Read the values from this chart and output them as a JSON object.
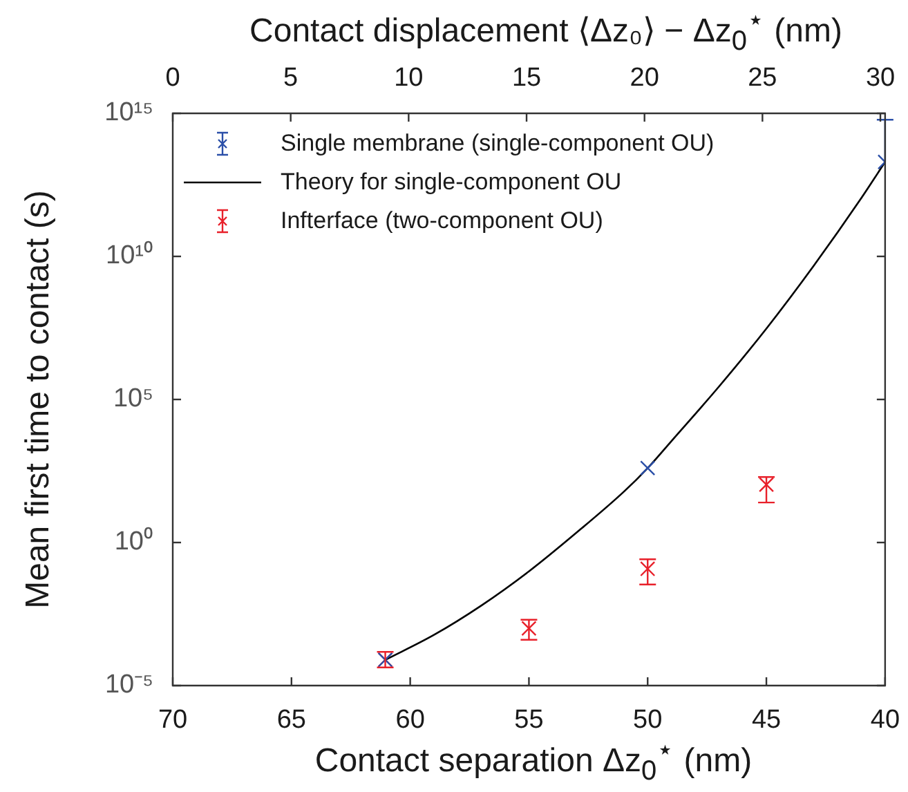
{
  "chart_data": {
    "type": "scatter",
    "xlabel": "Contact separation  Δz$_{0}$$^{⋆}$ (nm)",
    "x2label": "Contact displacement ⟨Δz₀⟩ − Δz$_{0}$$^{⋆}$ (nm)",
    "ylabel": "Mean first time to contact (s)",
    "xlim": [
      70,
      40
    ],
    "xticks": [
      70,
      65,
      60,
      55,
      50,
      45,
      40
    ],
    "x2lim": [
      0,
      30.2
    ],
    "x2ticks": [
      0,
      5,
      10,
      15,
      20,
      25,
      30
    ],
    "ylim": [
      1e-05,
      1000000000000000.0
    ],
    "yticks": [
      {
        "value": 1e-05,
        "label": "10⁻⁵"
      },
      {
        "value": 1,
        "label": "10⁰"
      },
      {
        "value": 100000.0,
        "label": "10⁵"
      },
      {
        "value": 10000000000.0,
        "label": "10¹⁰"
      },
      {
        "value": 1000000000000000.0,
        "label": "10¹⁵"
      }
    ],
    "log": "y",
    "legend": "top left",
    "series": [
      {
        "name": "Single membrane (single-component OU)",
        "marker": "cross",
        "color": "#2b4fa8",
        "x": [
          61.05,
          50,
          40
        ],
        "values": [
          7.9e-05,
          400,
          20000000000000.0
        ],
        "errors": [
          null,
          null,
          [
            20000000000000.0,
            600000000000000.0
          ]
        ]
      },
      {
        "name": "Theory for single-component OU",
        "type": "line",
        "marker": "none",
        "color": "#000000",
        "x": [
          61.05,
          59,
          57,
          55,
          53,
          51,
          50,
          49,
          47,
          45,
          43,
          41,
          40
        ],
        "values": [
          7.9e-05,
          0.00059,
          0.0063,
          0.098,
          2.2,
          60,
          400,
          3500,
          280000.0,
          30000000.0,
          4800000000.0,
          1100000000000.0,
          20000000000000.0
        ]
      },
      {
        "name": "Infterface (two-component OU)",
        "marker": "cross",
        "color": "#e8202a",
        "x": [
          61.05,
          55,
          50,
          45
        ],
        "values": [
          8e-05,
          0.001,
          0.12,
          105
        ],
        "errors": [
          [
            4.3e-05,
            0.00015
          ],
          [
            0.0004,
            0.002
          ],
          [
            0.034,
            0.26
          ],
          [
            25,
            195
          ]
        ]
      }
    ]
  }
}
